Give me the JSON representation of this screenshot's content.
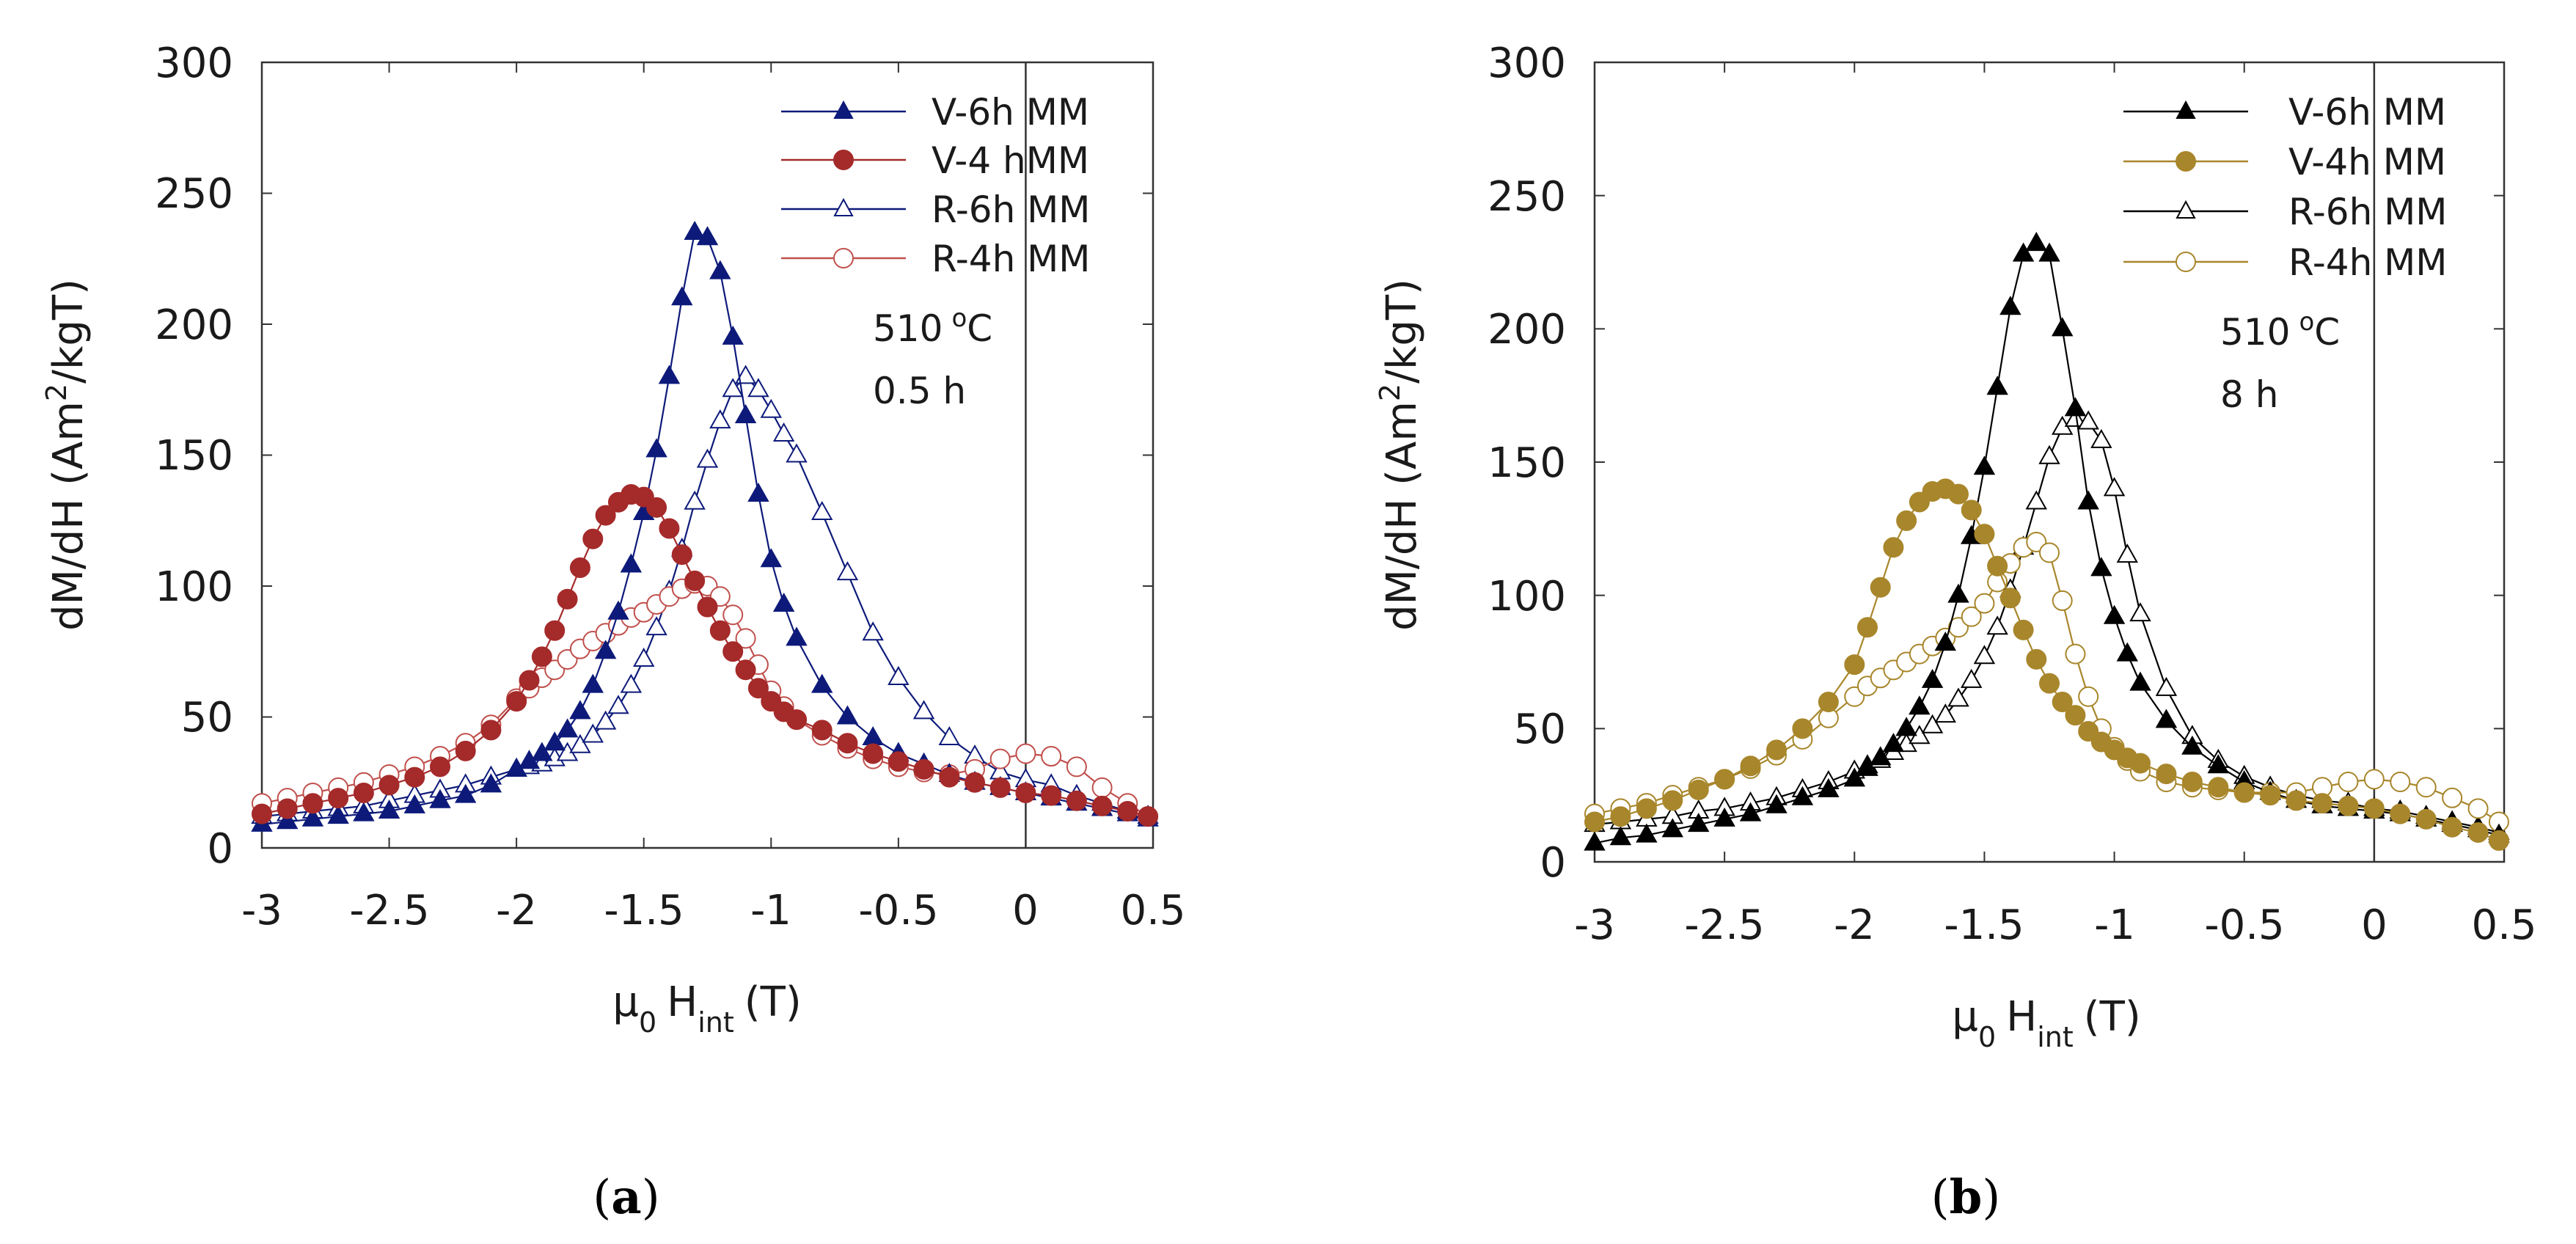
{
  "chart_data": [
    {
      "type": "line",
      "panel_label": "a",
      "xlabel": "μ0 Hint (T)",
      "xlabel_parts": {
        "mu": "μ",
        "mu_sub": "0",
        "h": "H",
        "h_sub": "int",
        "unit": "(T)"
      },
      "ylabel": "dM/dH (Am2/kgT)",
      "ylabel_parts": {
        "pre": "dM/dH (Am",
        "sup": "2",
        "post": "/kgT)"
      },
      "xlim": [
        -3,
        0.5
      ],
      "ylim": [
        0,
        300
      ],
      "xticks": [
        -3,
        -2.5,
        -2,
        -1.5,
        -1,
        -0.5,
        0,
        0.5
      ],
      "xtick_labels": [
        "-3",
        "-2.5",
        "-2",
        "-1.5",
        "-1",
        "-0.5",
        "0",
        "0.5"
      ],
      "yticks": [
        0,
        50,
        100,
        150,
        200,
        250,
        300
      ],
      "ytick_labels": [
        "0",
        "50",
        "100",
        "150",
        "200",
        "250",
        "300"
      ],
      "vline_x": 0,
      "annotation": {
        "temp": "510",
        "temp_sup": "o",
        "temp_unit": "C",
        "time": "0.5 h"
      },
      "series": [
        {
          "name": "V-6h MM",
          "marker": "triangle",
          "filled": true,
          "color": "#0d1a7a",
          "x": [
            -3.0,
            -2.9,
            -2.8,
            -2.7,
            -2.6,
            -2.5,
            -2.4,
            -2.3,
            -2.2,
            -2.1,
            -2.0,
            -1.95,
            -1.9,
            -1.85,
            -1.8,
            -1.75,
            -1.7,
            -1.65,
            -1.6,
            -1.55,
            -1.5,
            -1.45,
            -1.4,
            -1.35,
            -1.3,
            -1.25,
            -1.2,
            -1.15,
            -1.1,
            -1.05,
            -1.0,
            -0.95,
            -0.9,
            -0.8,
            -0.7,
            -0.6,
            -0.5,
            -0.4,
            -0.3,
            -0.2,
            -0.1,
            0.0,
            0.1,
            0.2,
            0.3,
            0.4,
            0.48
          ],
          "y": [
            9,
            10,
            11,
            12,
            13,
            14,
            16,
            18,
            20,
            24,
            30,
            33,
            36,
            40,
            45,
            52,
            62,
            75,
            90,
            108,
            128,
            152,
            180,
            210,
            235,
            233,
            220,
            195,
            165,
            135,
            110,
            93,
            80,
            62,
            50,
            42,
            36,
            32,
            28,
            25,
            23,
            21,
            19,
            17,
            15,
            13,
            11
          ]
        },
        {
          "name": "V-4 hMM",
          "marker": "circle",
          "filled": true,
          "color": "#a52a2a",
          "x": [
            -3.0,
            -2.9,
            -2.8,
            -2.7,
            -2.6,
            -2.5,
            -2.4,
            -2.3,
            -2.2,
            -2.1,
            -2.0,
            -1.95,
            -1.9,
            -1.85,
            -1.8,
            -1.75,
            -1.7,
            -1.65,
            -1.6,
            -1.55,
            -1.5,
            -1.45,
            -1.4,
            -1.35,
            -1.3,
            -1.25,
            -1.2,
            -1.15,
            -1.1,
            -1.05,
            -1.0,
            -0.95,
            -0.9,
            -0.8,
            -0.7,
            -0.6,
            -0.5,
            -0.4,
            -0.3,
            -0.2,
            -0.1,
            0.0,
            0.1,
            0.2,
            0.3,
            0.4,
            0.48
          ],
          "y": [
            13,
            15,
            17,
            19,
            21,
            24,
            27,
            31,
            37,
            45,
            56,
            64,
            73,
            83,
            95,
            107,
            118,
            127,
            132,
            135,
            134,
            130,
            122,
            112,
            102,
            92,
            83,
            75,
            68,
            61,
            56,
            52,
            49,
            45,
            40,
            36,
            33,
            30,
            27,
            25,
            23,
            21,
            20,
            18,
            16,
            14,
            12
          ]
        },
        {
          "name": "R-6h MM",
          "marker": "triangle",
          "filled": false,
          "color": "#0d1a7a",
          "x": [
            -3.0,
            -2.9,
            -2.8,
            -2.7,
            -2.6,
            -2.5,
            -2.4,
            -2.3,
            -2.2,
            -2.1,
            -2.0,
            -1.95,
            -1.9,
            -1.85,
            -1.8,
            -1.75,
            -1.7,
            -1.65,
            -1.6,
            -1.55,
            -1.5,
            -1.45,
            -1.4,
            -1.35,
            -1.3,
            -1.25,
            -1.2,
            -1.15,
            -1.1,
            -1.05,
            -1.0,
            -0.95,
            -0.9,
            -0.8,
            -0.7,
            -0.6,
            -0.5,
            -0.4,
            -0.3,
            -0.2,
            -0.1,
            0.0,
            0.1,
            0.2,
            0.3,
            0.4,
            0.48
          ],
          "y": [
            12,
            13,
            14,
            15,
            16,
            18,
            20,
            22,
            24,
            27,
            30,
            31,
            32,
            34,
            36,
            39,
            43,
            48,
            54,
            62,
            72,
            84,
            98,
            114,
            132,
            148,
            163,
            175,
            180,
            175,
            167,
            158,
            150,
            128,
            105,
            82,
            65,
            52,
            42,
            35,
            29,
            26,
            24,
            20,
            17,
            14,
            12
          ]
        },
        {
          "name": "R-4h MM",
          "marker": "circle",
          "filled": false,
          "color": "#c0504d",
          "x": [
            -3.0,
            -2.9,
            -2.8,
            -2.7,
            -2.6,
            -2.5,
            -2.4,
            -2.3,
            -2.2,
            -2.1,
            -2.0,
            -1.95,
            -1.9,
            -1.85,
            -1.8,
            -1.75,
            -1.7,
            -1.65,
            -1.6,
            -1.55,
            -1.5,
            -1.45,
            -1.4,
            -1.35,
            -1.3,
            -1.25,
            -1.2,
            -1.15,
            -1.1,
            -1.05,
            -1.0,
            -0.95,
            -0.9,
            -0.8,
            -0.7,
            -0.6,
            -0.5,
            -0.4,
            -0.3,
            -0.2,
            -0.1,
            0.0,
            0.1,
            0.2,
            0.3,
            0.4,
            0.48
          ],
          "y": [
            17,
            19,
            21,
            23,
            25,
            28,
            31,
            35,
            40,
            47,
            57,
            61,
            65,
            68,
            72,
            76,
            79,
            82,
            85,
            88,
            90,
            93,
            96,
            99,
            101,
            100,
            96,
            89,
            80,
            70,
            60,
            54,
            49,
            43,
            38,
            34,
            31,
            29,
            28,
            30,
            34,
            36,
            35,
            31,
            23,
            17,
            12
          ]
        }
      ]
    },
    {
      "type": "line",
      "panel_label": "b",
      "xlabel": "μ0 Hint (T)",
      "xlabel_parts": {
        "mu": "μ",
        "mu_sub": "0",
        "h": "H",
        "h_sub": "int",
        "unit": "(T)"
      },
      "ylabel": "dM/dH (Am2/kgT)",
      "ylabel_parts": {
        "pre": "dM/dH (Am",
        "sup": "2",
        "post": "/kgT)"
      },
      "xlim": [
        -3,
        0.5
      ],
      "ylim": [
        0,
        300
      ],
      "xticks": [
        -3,
        -2.5,
        -2,
        -1.5,
        -1,
        -0.5,
        0,
        0.5
      ],
      "xtick_labels": [
        "-3",
        "-2.5",
        "-2",
        "-1.5",
        "-1",
        "-0.5",
        "0",
        "0.5"
      ],
      "yticks": [
        0,
        50,
        100,
        150,
        200,
        250,
        300
      ],
      "ytick_labels": [
        "0",
        "50",
        "100",
        "150",
        "200",
        "250",
        "300"
      ],
      "vline_x": 0,
      "annotation": {
        "temp": "510",
        "temp_sup": "o",
        "temp_unit": "C",
        "time": "8 h"
      },
      "series": [
        {
          "name": "V-6h MM",
          "marker": "triangle",
          "filled": true,
          "color": "#000000",
          "x": [
            -3.0,
            -2.9,
            -2.8,
            -2.7,
            -2.6,
            -2.5,
            -2.4,
            -2.3,
            -2.2,
            -2.1,
            -2.0,
            -1.95,
            -1.9,
            -1.85,
            -1.8,
            -1.75,
            -1.7,
            -1.65,
            -1.6,
            -1.55,
            -1.5,
            -1.45,
            -1.4,
            -1.35,
            -1.3,
            -1.25,
            -1.2,
            -1.15,
            -1.1,
            -1.05,
            -1.0,
            -0.95,
            -0.9,
            -0.8,
            -0.7,
            -0.6,
            -0.5,
            -0.4,
            -0.3,
            -0.2,
            -0.1,
            0.0,
            0.1,
            0.2,
            0.3,
            0.4,
            0.48
          ],
          "y": [
            7,
            9,
            10,
            12,
            14,
            16,
            18,
            21,
            24,
            27,
            31,
            35,
            39,
            44,
            50,
            58,
            68,
            82,
            100,
            122,
            148,
            178,
            208,
            228,
            232,
            228,
            200,
            170,
            135,
            110,
            92,
            78,
            67,
            53,
            43,
            36,
            30,
            26,
            23,
            21,
            20,
            19,
            18,
            16,
            14,
            12,
            10
          ]
        },
        {
          "name": "V-4h MM",
          "marker": "circle",
          "filled": true,
          "color": "#a8862b",
          "x": [
            -3.0,
            -2.9,
            -2.8,
            -2.7,
            -2.6,
            -2.5,
            -2.4,
            -2.3,
            -2.2,
            -2.1,
            -2.0,
            -1.95,
            -1.9,
            -1.85,
            -1.8,
            -1.75,
            -1.7,
            -1.65,
            -1.6,
            -1.55,
            -1.5,
            -1.45,
            -1.4,
            -1.35,
            -1.3,
            -1.25,
            -1.2,
            -1.15,
            -1.1,
            -1.05,
            -1.0,
            -0.95,
            -0.9,
            -0.8,
            -0.7,
            -0.6,
            -0.5,
            -0.4,
            -0.3,
            -0.2,
            -0.1,
            0.0,
            0.1,
            0.2,
            0.3,
            0.4,
            0.48
          ],
          "y": [
            15,
            17,
            20,
            23,
            27,
            31,
            36,
            42,
            50,
            60,
            74,
            88,
            103,
            118,
            128,
            135,
            139,
            140,
            138,
            132,
            123,
            111,
            99,
            87,
            76,
            67,
            60,
            55,
            49,
            45,
            42,
            39,
            37,
            33,
            30,
            28,
            26,
            25,
            23,
            22,
            21,
            20,
            18,
            16,
            13,
            11,
            8
          ]
        },
        {
          "name": "R-6h MM",
          "marker": "triangle",
          "filled": false,
          "color": "#000000",
          "x": [
            -3.0,
            -2.9,
            -2.8,
            -2.7,
            -2.6,
            -2.5,
            -2.4,
            -2.3,
            -2.2,
            -2.1,
            -2.0,
            -1.95,
            -1.9,
            -1.85,
            -1.8,
            -1.75,
            -1.7,
            -1.65,
            -1.6,
            -1.55,
            -1.5,
            -1.45,
            -1.4,
            -1.35,
            -1.3,
            -1.25,
            -1.2,
            -1.15,
            -1.1,
            -1.05,
            -1.0,
            -0.95,
            -0.9,
            -0.8,
            -0.7,
            -0.6,
            -0.5,
            -0.4,
            -0.3,
            -0.2,
            -0.1,
            0.0,
            0.1,
            0.2,
            0.3,
            0.4,
            0.48
          ],
          "y": [
            14,
            15,
            16,
            17,
            19,
            20,
            22,
            24,
            27,
            30,
            34,
            36,
            38,
            41,
            44,
            47,
            51,
            55,
            61,
            68,
            77,
            88,
            102,
            118,
            135,
            152,
            163,
            166,
            165,
            158,
            140,
            115,
            93,
            65,
            47,
            38,
            32,
            28,
            25,
            23,
            22,
            20,
            19,
            17,
            15,
            13,
            11
          ]
        },
        {
          "name": "R-4h MM",
          "marker": "circle",
          "filled": false,
          "color": "#a8862b",
          "x": [
            -3.0,
            -2.9,
            -2.8,
            -2.7,
            -2.6,
            -2.5,
            -2.4,
            -2.3,
            -2.2,
            -2.1,
            -2.0,
            -1.95,
            -1.9,
            -1.85,
            -1.8,
            -1.75,
            -1.7,
            -1.65,
            -1.6,
            -1.55,
            -1.5,
            -1.45,
            -1.4,
            -1.35,
            -1.3,
            -1.25,
            -1.2,
            -1.15,
            -1.1,
            -1.05,
            -1.0,
            -0.95,
            -0.9,
            -0.8,
            -0.7,
            -0.6,
            -0.5,
            -0.4,
            -0.3,
            -0.2,
            -0.1,
            0.0,
            0.1,
            0.2,
            0.3,
            0.4,
            0.48
          ],
          "y": [
            18,
            20,
            22,
            25,
            28,
            31,
            35,
            40,
            46,
            54,
            62,
            66,
            69,
            72,
            75,
            78,
            81,
            84,
            88,
            92,
            97,
            105,
            112,
            118,
            120,
            116,
            98,
            78,
            62,
            50,
            43,
            38,
            34,
            30,
            28,
            27,
            26,
            26,
            26,
            28,
            30,
            31,
            30,
            28,
            24,
            20,
            15
          ]
        }
      ]
    }
  ]
}
